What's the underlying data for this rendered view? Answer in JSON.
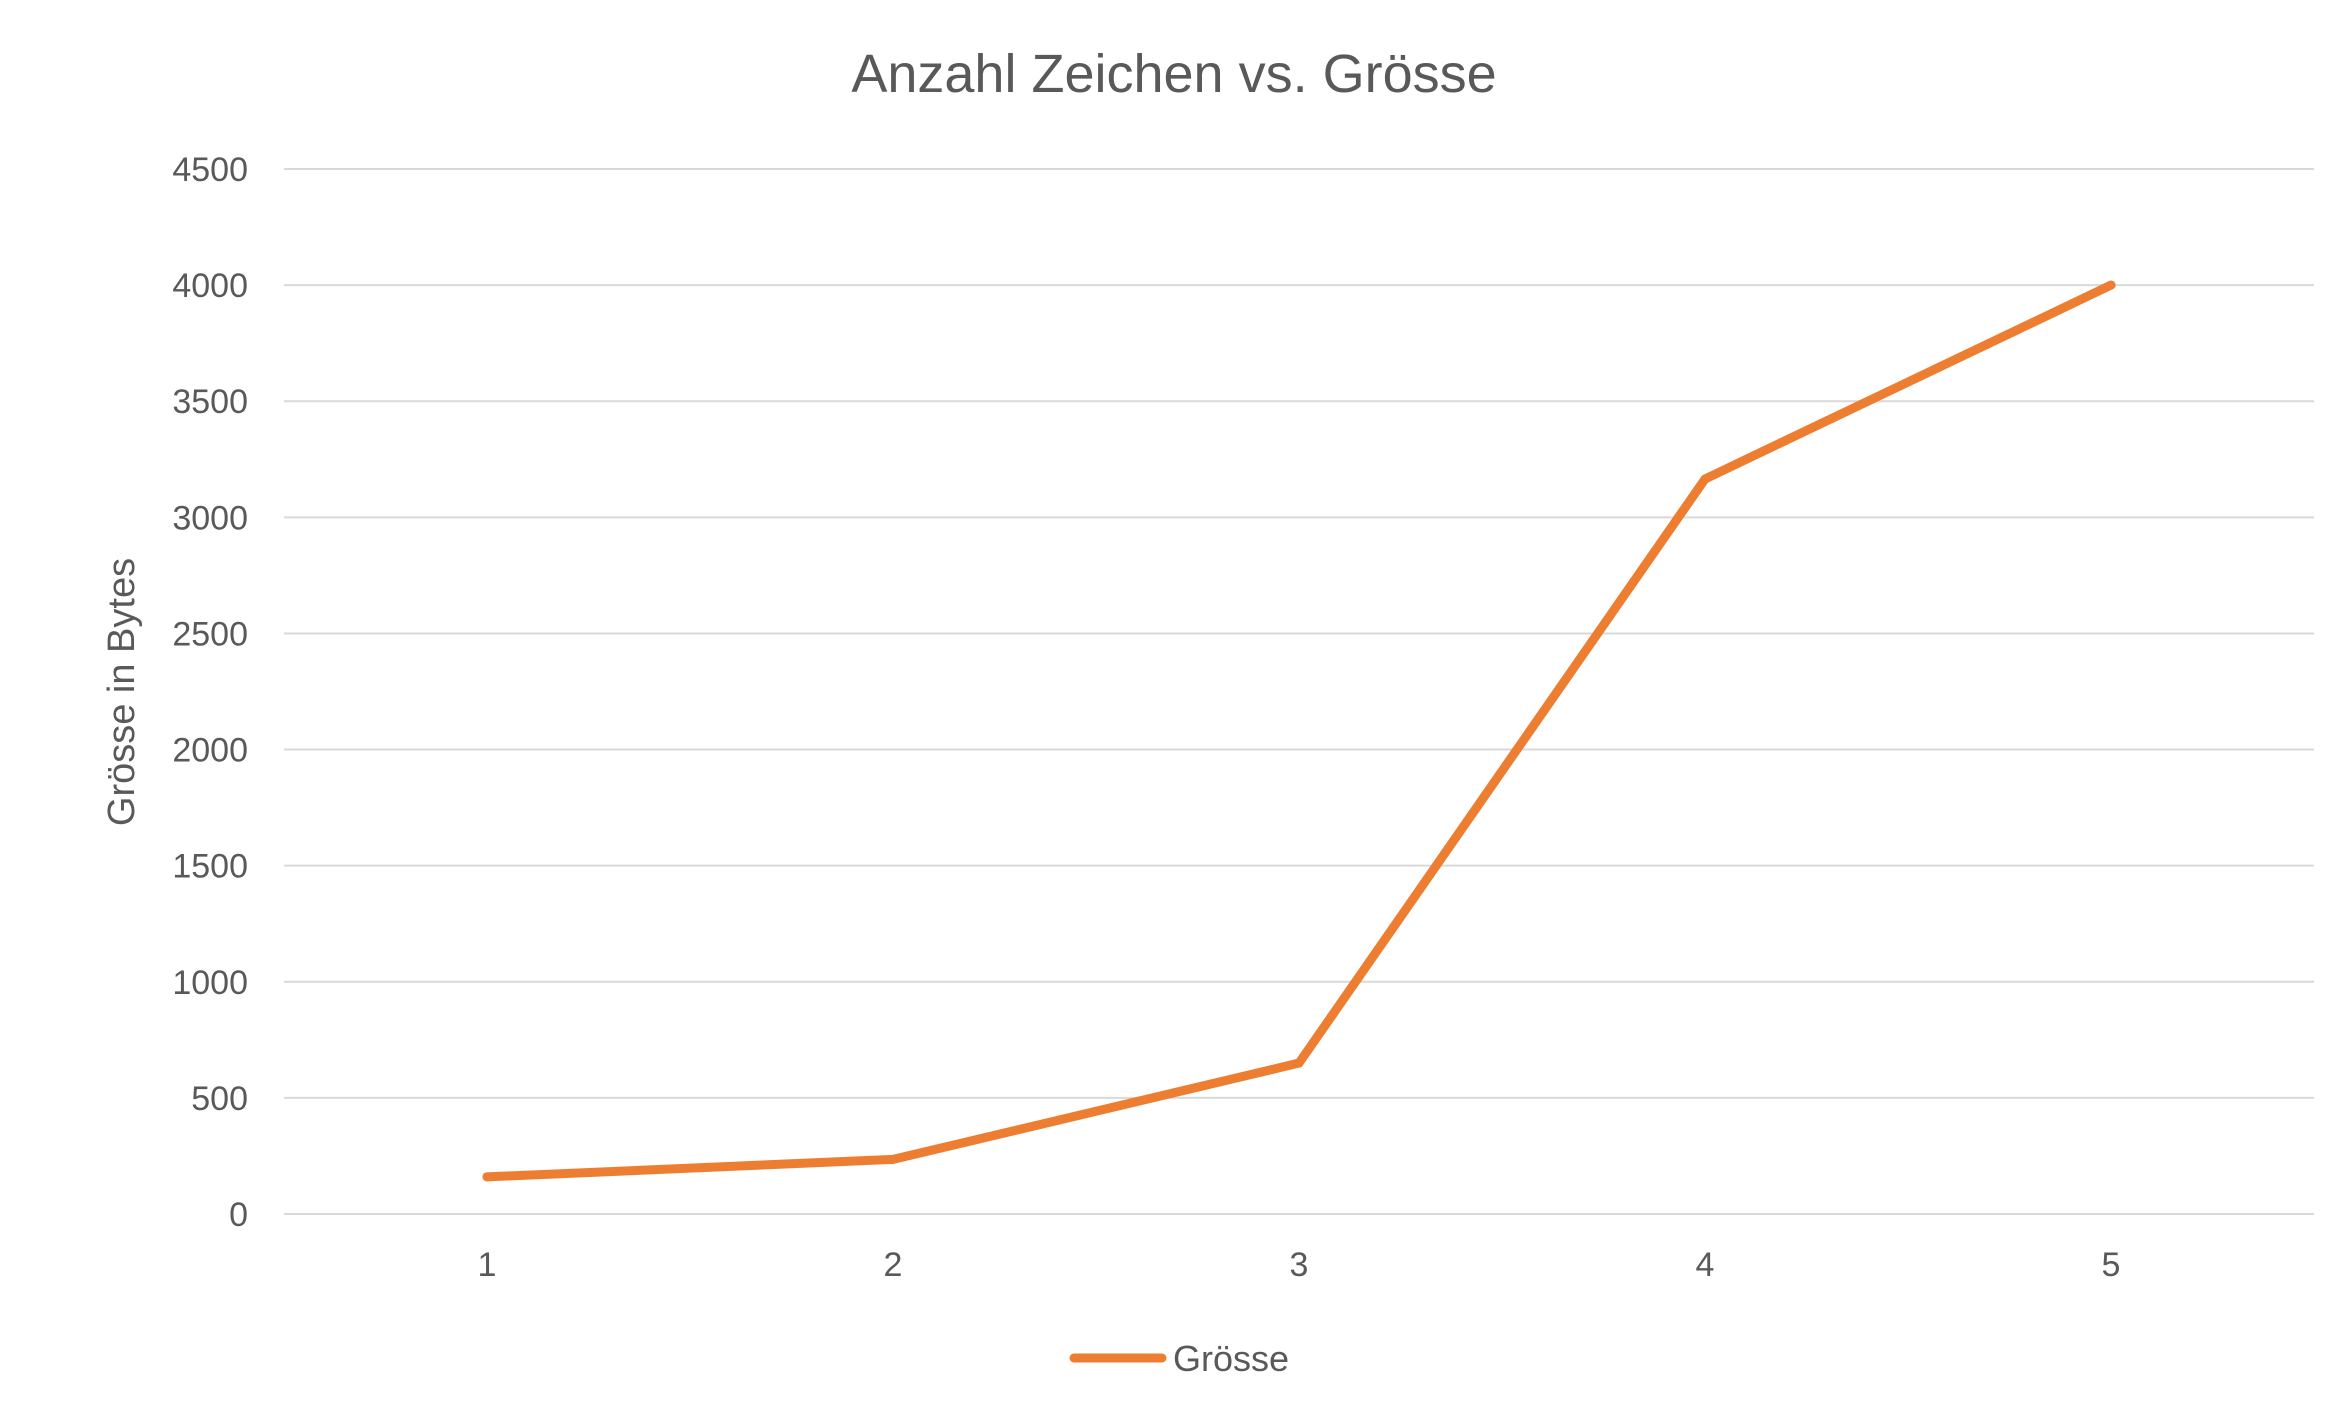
{
  "chart_data": {
    "type": "line",
    "title": "Anzahl Zeichen vs. Grösse",
    "xlabel": "",
    "ylabel": "Grösse in Bytes",
    "categories": [
      "1",
      "2",
      "3",
      "4",
      "5"
    ],
    "series": [
      {
        "name": "Grösse",
        "color": "#ed7d31",
        "values": [
          160,
          235,
          650,
          3165,
          4000
        ]
      }
    ],
    "ylim": [
      0,
      4500
    ],
    "yticks": [
      0,
      500,
      1000,
      1500,
      2000,
      2500,
      3000,
      3500,
      4000,
      4500
    ],
    "ytick_labels": [
      "0",
      "500",
      "1000",
      "1500",
      "2000",
      "2500",
      "3000",
      "3500",
      "4000",
      "4500"
    ],
    "grid": true,
    "legend": "bottom",
    "gridline_color": "#d9d9d9",
    "text_color": "#595959"
  }
}
